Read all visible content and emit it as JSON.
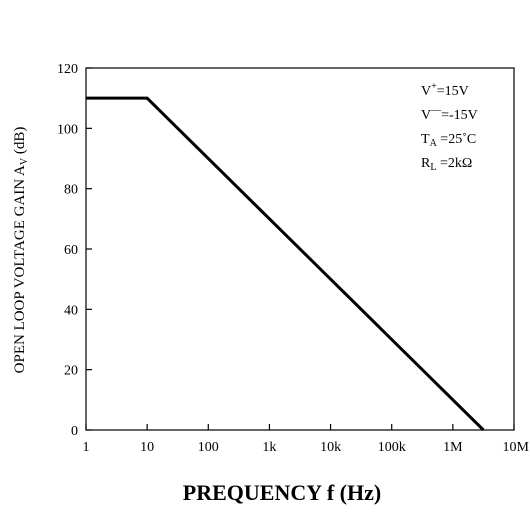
{
  "chart_data": {
    "type": "line",
    "title": "",
    "xlabel": "PREQUENCY f (Hz)",
    "ylabel": "OPEN LOOP VOLTAGE GAIN A",
    "ylabel_sub": "V",
    "ylabel_unit": "(dB)",
    "x_scale": "log",
    "xlim": [
      1,
      10000000
    ],
    "ylim": [
      0,
      120
    ],
    "x_ticks": [
      {
        "value": 1,
        "label": "1"
      },
      {
        "value": 10,
        "label": "10"
      },
      {
        "value": 100,
        "label": "100"
      },
      {
        "value": 1000,
        "label": "1k"
      },
      {
        "value": 10000,
        "label": "10k"
      },
      {
        "value": 100000,
        "label": "100k"
      },
      {
        "value": 1000000,
        "label": "1M"
      },
      {
        "value": 10000000,
        "label": "10M"
      }
    ],
    "y_ticks": [
      {
        "value": 0,
        "label": "0"
      },
      {
        "value": 20,
        "label": "20"
      },
      {
        "value": 40,
        "label": "40"
      },
      {
        "value": 60,
        "label": "60"
      },
      {
        "value": 80,
        "label": "80"
      },
      {
        "value": 100,
        "label": "100"
      },
      {
        "value": 120,
        "label": "120"
      }
    ],
    "grid": false,
    "series": [
      {
        "x": [
          1,
          10,
          3162278
        ],
        "y": [
          110,
          110,
          0
        ]
      }
    ],
    "conditions": [
      {
        "main": "V",
        "sup": "+",
        "sub": "",
        "value": "=15V"
      },
      {
        "main": "V",
        "sup": "—",
        "sub": "",
        "value": "=-15V"
      },
      {
        "main": "T",
        "sup": "",
        "sub": "A",
        "value": "=25˚C"
      },
      {
        "main": "R",
        "sup": "",
        "sub": "L",
        "value": "=2kΩ"
      }
    ]
  }
}
